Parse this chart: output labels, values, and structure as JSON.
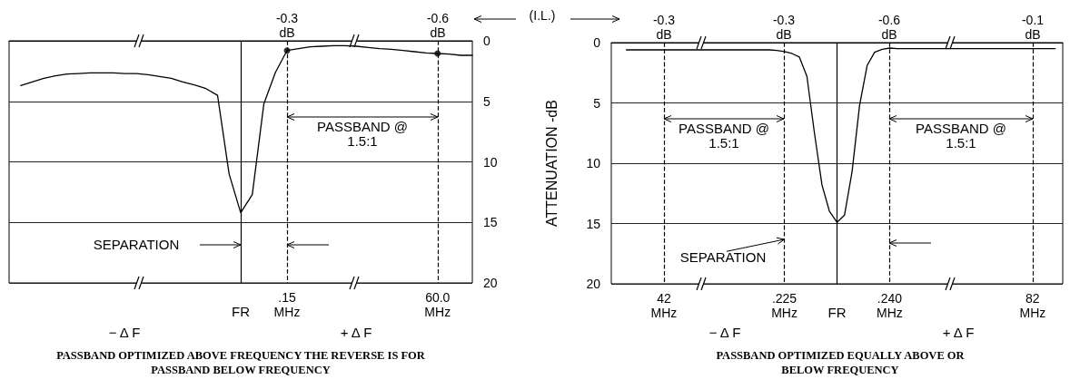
{
  "chart_data": [
    {
      "type": "line",
      "marker": "none",
      "grid": "y",
      "ylim": [
        20,
        0
      ],
      "yticks": [
        0,
        5,
        10,
        15,
        20
      ],
      "categories": [
        null,
        null,
        null,
        null,
        null,
        null,
        null,
        null,
        null,
        null,
        null,
        null,
        null,
        null,
        null,
        null,
        null,
        null,
        null,
        null,
        "FR",
        null,
        null,
        null,
        ".15 MHz",
        null,
        null,
        null,
        null,
        null,
        null,
        null,
        null,
        null,
        null,
        null,
        null,
        "60.0 MHz",
        null,
        null,
        null
      ],
      "series": [
        {
          "color": "#000000",
          "values": [
            null,
            3.7,
            3.4,
            3.1,
            2.9,
            2.75,
            2.7,
            2.65,
            2.65,
            2.65,
            2.7,
            2.7,
            2.8,
            2.95,
            3.1,
            3.4,
            3.65,
            3.95,
            4.5,
            11,
            14.2,
            12.7,
            5.2,
            2.6,
            0.8,
            0.65,
            0.5,
            0.45,
            0.4,
            0.4,
            0.45,
            0.55,
            0.65,
            0.7,
            0.8,
            0.9,
            1.0,
            1.05,
            1.1,
            1.2,
            1.2
          ]
        },
        {
          "type": "scatter",
          "marker": "circle",
          "color": "#000000",
          "x": [
            ".15 MHz",
            "60.0 MHz"
          ],
          "values": [
            0.8,
            1.05
          ]
        }
      ],
      "ref_lines": [
        {
          "axis": "x",
          "value": "FR"
        },
        {
          "axis": "x",
          "value": ".15 MHz",
          "line_style": "dashed"
        },
        {
          "axis": "x",
          "value": "60.0 MHz",
          "line_style": "dashed"
        }
      ],
      "annotations": [
        "-0.3 dB",
        "-0.6 dB",
        "(I.L.)",
        "− Δ F",
        "+ Δ F",
        "PASSBAND @ 1.5:1",
        "SEPARATION",
        "PASSBAND OPTIMIZED ABOVE FREQUENCY THE REVERSE IS FOR PASSBAND BELOW FREQUENCY"
      ]
    },
    {
      "type": "line",
      "marker": "none",
      "grid": "y",
      "ylim": [
        20,
        0
      ],
      "yticks": [
        0,
        5,
        10,
        15,
        20
      ],
      "ylabel": "ATTENUATION -dB",
      "categories": [
        null,
        null,
        null,
        null,
        null,
        null,
        null,
        "42 MHz",
        null,
        null,
        null,
        null,
        null,
        null,
        null,
        null,
        null,
        null,
        null,
        null,
        null,
        null,
        null,
        ".225 MHz",
        null,
        null,
        null,
        null,
        null,
        null,
        "FR",
        null,
        null,
        null,
        null,
        null,
        null,
        ".240 MHz",
        null,
        null,
        null,
        null,
        null,
        null,
        null,
        null,
        null,
        null,
        null,
        null,
        null,
        null,
        null,
        null,
        null,
        null,
        "82 MHz",
        null,
        null,
        null,
        null
      ],
      "series": [
        {
          "color": "#000000",
          "values": [
            null,
            null,
            0.6,
            0.6,
            0.6,
            0.6,
            0.6,
            0.6,
            0.6,
            0.6,
            0.6,
            0.6,
            0.6,
            0.6,
            0.6,
            0.6,
            0.6,
            0.6,
            0.6,
            0.6,
            0.6,
            0.6,
            0.65,
            0.75,
            0.9,
            1.2,
            2.8,
            7.5,
            11.8,
            14,
            14.9,
            14.3,
            10.7,
            5.2,
            1.9,
            0.8,
            0.55,
            0.45,
            0.5,
            0.5,
            0.5,
            0.5,
            0.5,
            0.5,
            0.5,
            0.5,
            0.5,
            0.5,
            0.5,
            0.5,
            0.5,
            0.5,
            0.5,
            0.5,
            0.5,
            0.5,
            0.5,
            0.5,
            0.5,
            0.5,
            null
          ]
        }
      ],
      "ref_lines": [
        {
          "axis": "x",
          "value": "FR"
        },
        {
          "axis": "x",
          "value": "42 MHz",
          "line_style": "dashed"
        },
        {
          "axis": "x",
          "value": ".225 MHz",
          "line_style": "dashed"
        },
        {
          "axis": "x",
          "value": ".240 MHz",
          "line_style": "dashed"
        },
        {
          "axis": "x",
          "value": "82 MHz",
          "line_style": "dashed"
        }
      ],
      "annotations": [
        "-0.3 dB",
        "-0.3 dB",
        "-0.6 dB",
        "-0.1 dB",
        "− Δ F",
        "+ Δ F",
        "PASSBAND @ 1.5:1",
        "PASSBAND @ 1.5:1",
        {
          "text": "SEPARATION",
          "x": ".225 MHz",
          "y": 16.3
        },
        "PASSBAND OPTIMIZED EQUALLY ABOVE OR BELOW FREQUENCY"
      ]
    }
  ]
}
